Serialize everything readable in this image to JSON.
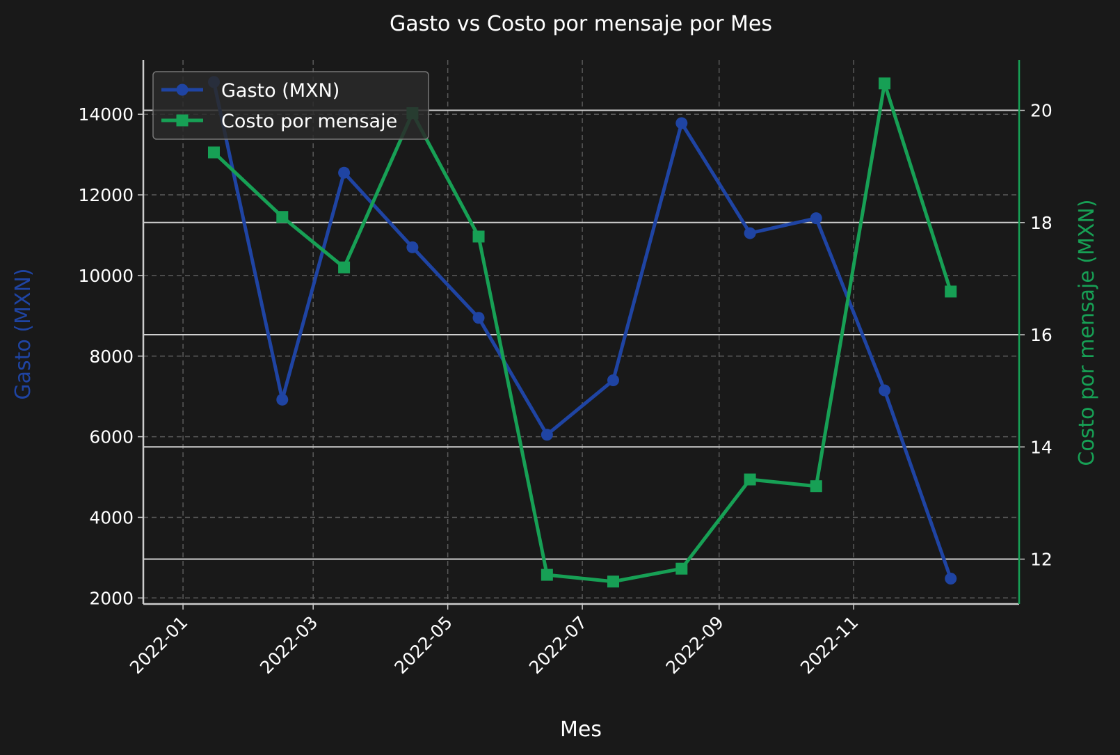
{
  "chart_data": {
    "type": "line",
    "title": "Gasto vs Costo por mensaje por Mes",
    "xlabel": "Mes",
    "x": [
      "2022-01-15",
      "2022-02-15",
      "2022-03-15",
      "2022-04-15",
      "2022-05-15",
      "2022-06-15",
      "2022-07-15",
      "2022-08-15",
      "2022-09-15",
      "2022-10-15",
      "2022-11-15",
      "2022-12-15"
    ],
    "x_range": [
      "2021-12-14",
      "2023-01-15"
    ],
    "x_ticks": [
      "2022-01",
      "2022-03",
      "2022-05",
      "2022-07",
      "2022-09",
      "2022-11"
    ],
    "grid": true,
    "legend_position": "top-left",
    "y_left": {
      "label": "Gasto (MXN)",
      "ylim": [
        1850,
        15350
      ],
      "ticks": [
        2000,
        4000,
        6000,
        8000,
        10000,
        12000,
        14000
      ],
      "color": "#1f44a3"
    },
    "y_right": {
      "label": "Costo por mensaje (MXN)",
      "ylim": [
        11.2,
        20.9
      ],
      "ticks": [
        12,
        14,
        16,
        18,
        20
      ],
      "color": "#17a055"
    },
    "series": [
      {
        "name": "Gasto (MXN)",
        "axis": "left",
        "marker": "circle",
        "color": "#1f44a3",
        "values": [
          14800,
          6920,
          12550,
          10700,
          8950,
          6050,
          7400,
          13780,
          11050,
          11420,
          7150,
          2480
        ]
      },
      {
        "name": "Costo por mensaje",
        "axis": "right",
        "marker": "square",
        "color": "#17a055",
        "values": [
          19.25,
          18.1,
          17.2,
          19.95,
          17.75,
          11.72,
          11.6,
          11.83,
          13.42,
          13.3,
          20.48,
          16.77
        ]
      }
    ]
  }
}
